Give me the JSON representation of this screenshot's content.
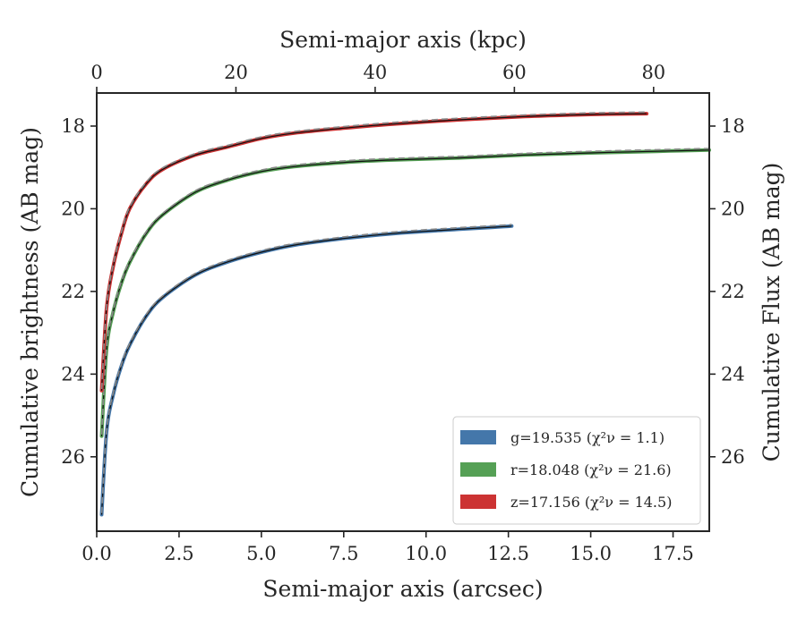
{
  "chart_data": {
    "type": "line",
    "xlabel": "Semi-major axis (arcsec)",
    "x2label": "Semi-major axis (kpc)",
    "ylabel": "Cumulative brightness (AB mag)",
    "y2label": "Cumulative Flux (AB mag)",
    "xlim": [
      0,
      18.6
    ],
    "x2lim": [
      0,
      88
    ],
    "ylim": [
      27.8,
      17.2
    ],
    "y_inverted": true,
    "x_ticks": [
      "0.0",
      "2.5",
      "5.0",
      "7.5",
      "10.0",
      "12.5",
      "15.0",
      "17.5"
    ],
    "x_tick_values": [
      0,
      2.5,
      5,
      7.5,
      10,
      12.5,
      15,
      17.5
    ],
    "x2_ticks": [
      "0",
      "20",
      "40",
      "60",
      "80"
    ],
    "x2_tick_values": [
      0,
      20,
      40,
      60,
      80
    ],
    "y_ticks": [
      "18",
      "20",
      "22",
      "24",
      "26"
    ],
    "y_tick_values": [
      18,
      20,
      22,
      24,
      26
    ],
    "grid": false,
    "legend_position": "lower-right",
    "series": [
      {
        "name": "g=19.535",
        "chi_label": "(χ²ν = 1.1)",
        "color": "#4477aa",
        "x": [
          0.15,
          0.3,
          0.5,
          0.75,
          1.0,
          1.5,
          2.0,
          3.0,
          4.0,
          5.0,
          6.0,
          7.5,
          9.0,
          10.5,
          12.0,
          12.6
        ],
        "y": [
          27.4,
          25.4,
          24.5,
          23.8,
          23.3,
          22.6,
          22.15,
          21.6,
          21.28,
          21.05,
          20.88,
          20.72,
          20.6,
          20.52,
          20.45,
          20.42
        ]
      },
      {
        "name": "r=18.048",
        "chi_label": "(χ²ν = 21.6)",
        "color": "#55a055",
        "x": [
          0.15,
          0.3,
          0.5,
          0.75,
          1.0,
          1.5,
          2.0,
          3.0,
          4.0,
          5.0,
          6.0,
          7.5,
          9.0,
          11.0,
          13.0,
          15.0,
          17.0,
          18.6
        ],
        "y": [
          25.5,
          23.4,
          22.5,
          21.8,
          21.3,
          20.6,
          20.15,
          19.6,
          19.3,
          19.1,
          18.98,
          18.88,
          18.82,
          18.77,
          18.7,
          18.65,
          18.61,
          18.58
        ]
      },
      {
        "name": "z=17.156",
        "chi_label": "(χ²ν = 14.5)",
        "color": "#cc3333",
        "x": [
          0.15,
          0.3,
          0.5,
          0.75,
          1.0,
          1.5,
          2.0,
          3.0,
          4.0,
          5.0,
          6.0,
          7.5,
          9.0,
          11.0,
          13.0,
          15.0,
          16.7
        ],
        "y": [
          24.4,
          22.4,
          21.4,
          20.6,
          20.0,
          19.4,
          19.05,
          18.7,
          18.5,
          18.3,
          18.17,
          18.05,
          17.95,
          17.85,
          17.77,
          17.72,
          17.7
        ]
      }
    ]
  }
}
